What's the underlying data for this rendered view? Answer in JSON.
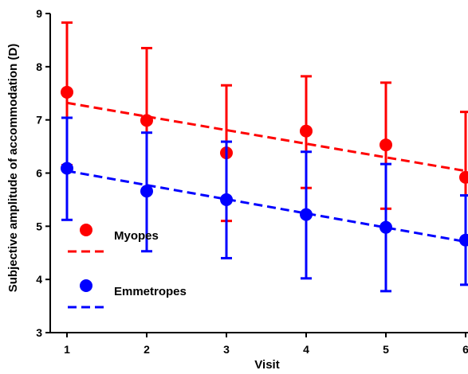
{
  "chart_data": {
    "type": "scatter",
    "xlabel": "Visit",
    "ylabel": "Subjective amplitude of accommodation (D)",
    "xlim": [
      1,
      6
    ],
    "ylim": [
      3,
      9
    ],
    "x_ticks": [
      "1",
      "2",
      "3",
      "4",
      "5",
      "6"
    ],
    "y_ticks": [
      "3",
      "4",
      "5",
      "6",
      "7",
      "8",
      "9"
    ],
    "grid": false,
    "legend_position": "bottom-left",
    "series": [
      {
        "name": "Myopes",
        "color": "#ff0000",
        "x": [
          1,
          2,
          3,
          4,
          5,
          6
        ],
        "y": [
          7.52,
          6.99,
          6.38,
          6.79,
          6.53,
          5.92
        ],
        "error_upper": [
          8.83,
          8.35,
          7.65,
          7.82,
          7.7,
          7.15
        ],
        "error_lower": [
          6.15,
          5.62,
          5.1,
          5.72,
          5.33,
          4.7
        ],
        "trend": [
          [
            1,
            7.32
          ],
          [
            6,
            6.04
          ]
        ]
      },
      {
        "name": "Emmetropes",
        "color": "#0000ff",
        "x": [
          1,
          2,
          3,
          4,
          5,
          6
        ],
        "y": [
          6.09,
          5.66,
          5.5,
          5.22,
          4.98,
          4.74
        ],
        "error_upper": [
          7.04,
          6.76,
          6.59,
          6.4,
          6.17,
          5.58
        ],
        "error_lower": [
          5.12,
          4.53,
          4.4,
          4.02,
          3.78,
          3.9
        ],
        "trend": [
          [
            1,
            6.04
          ],
          [
            6,
            4.71
          ]
        ]
      }
    ]
  }
}
